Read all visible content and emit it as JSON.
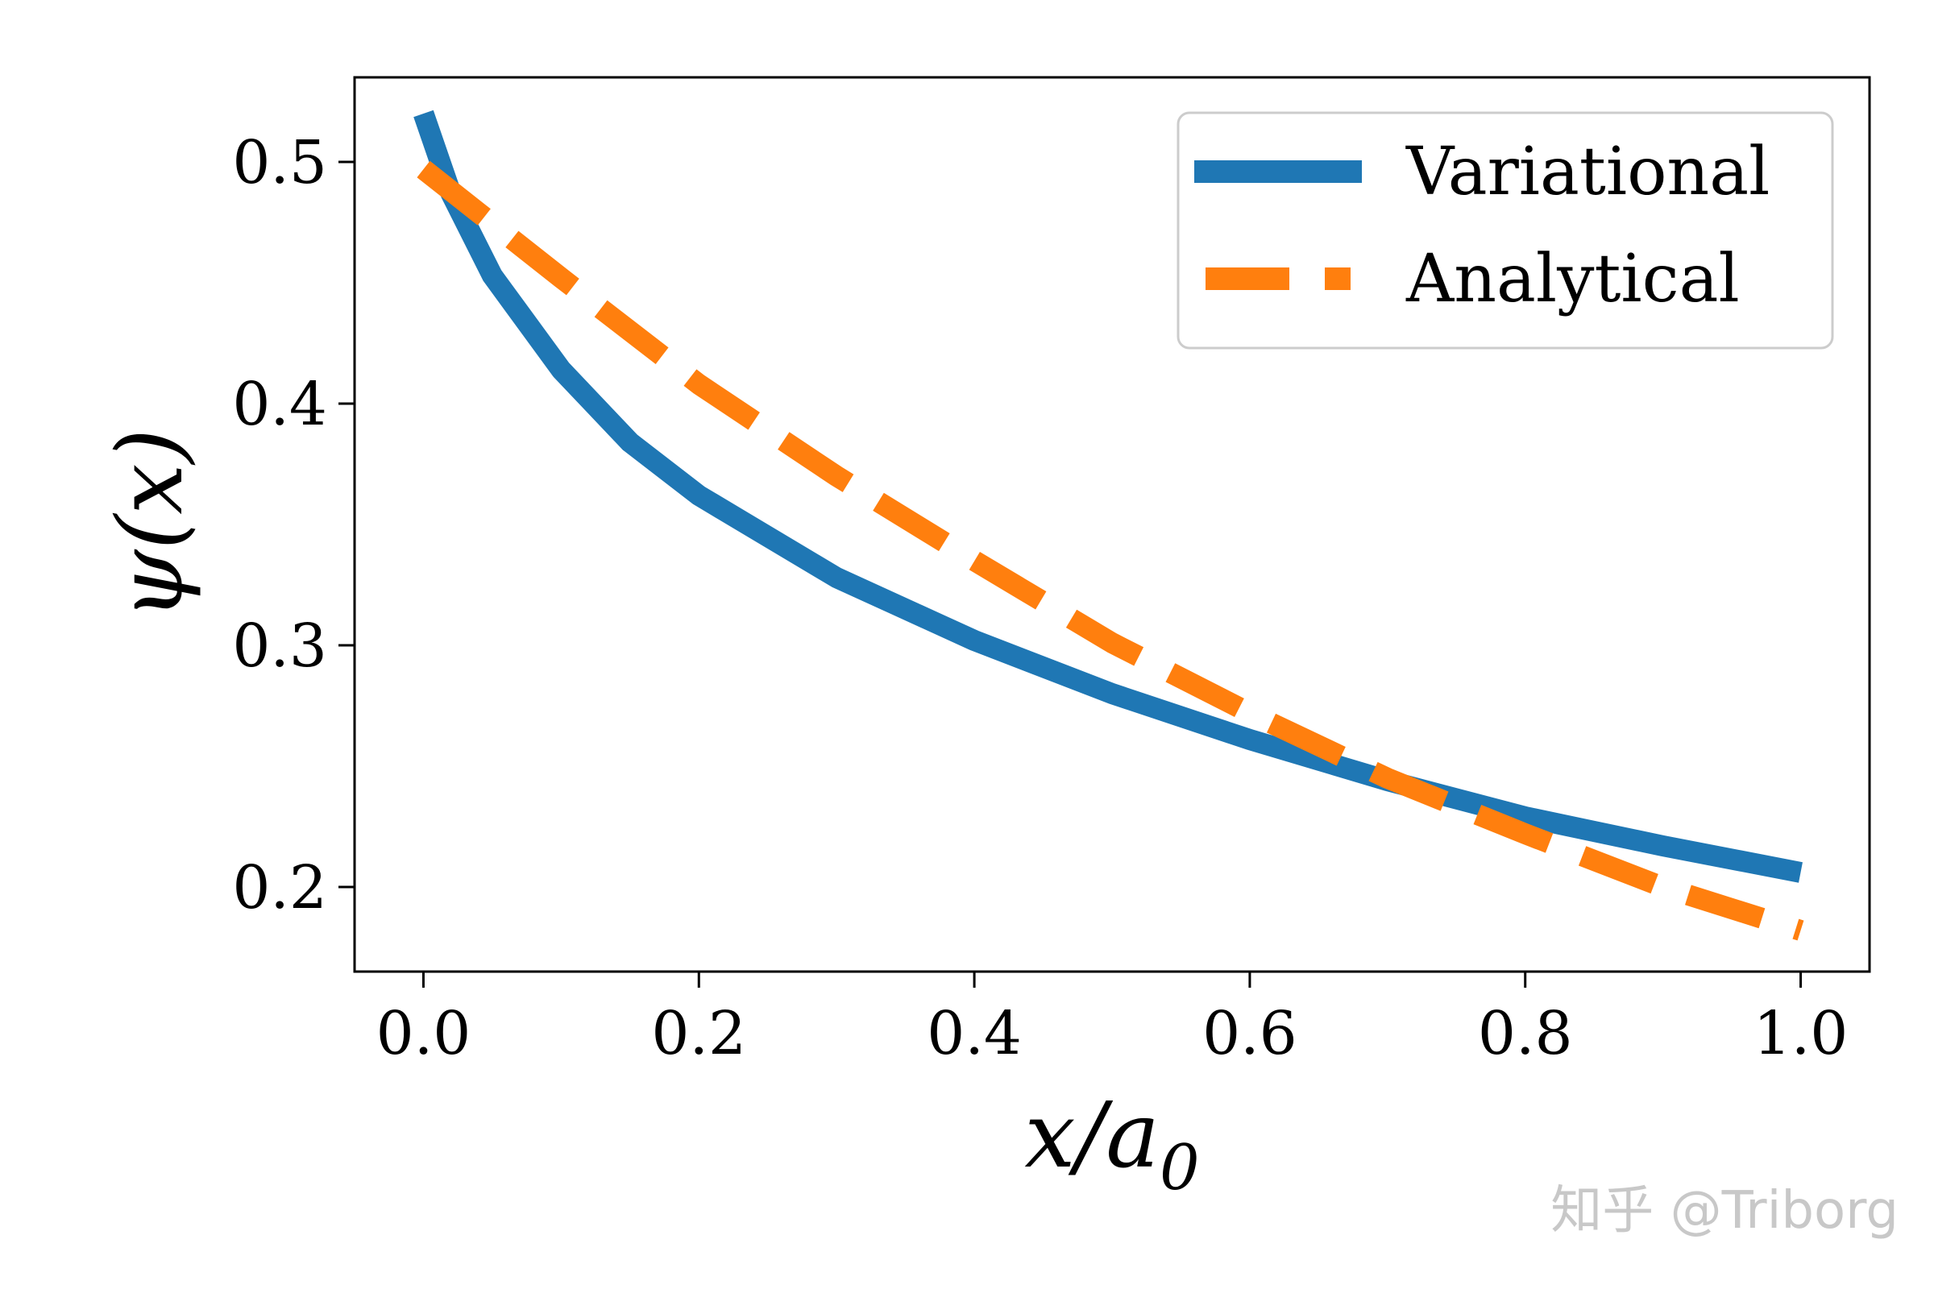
{
  "chart_data": {
    "type": "line",
    "title": "",
    "xlabel": "x/a",
    "xlabel_sub": "0",
    "ylabel": "ψ(x)",
    "xlim": [
      -0.05,
      1.05
    ],
    "ylim": [
      0.165,
      0.535
    ],
    "xticks": [
      0.0,
      0.2,
      0.4,
      0.6,
      0.8,
      1.0
    ],
    "xtick_labels": [
      "0.0",
      "0.2",
      "0.4",
      "0.6",
      "0.8",
      "1.0"
    ],
    "yticks": [
      0.2,
      0.3,
      0.4,
      0.5
    ],
    "ytick_labels": [
      "0.2",
      "0.3",
      "0.4",
      "0.5"
    ],
    "grid": false,
    "legend_position": "top-right",
    "series": [
      {
        "name": "Variational",
        "style": "solid",
        "color": "#1f77b4",
        "x": [
          0.0,
          0.02,
          0.05,
          0.1,
          0.15,
          0.2,
          0.3,
          0.4,
          0.5,
          0.6,
          0.7,
          0.8,
          0.9,
          1.0
        ],
        "y": [
          0.52,
          0.487,
          0.453,
          0.414,
          0.384,
          0.362,
          0.328,
          0.302,
          0.28,
          0.261,
          0.244,
          0.229,
          0.217,
          0.206
        ]
      },
      {
        "name": "Analytical",
        "style": "dashed",
        "color": "#ff7f0e",
        "x": [
          0.0,
          0.1,
          0.2,
          0.3,
          0.4,
          0.5,
          0.6,
          0.7,
          0.8,
          0.9,
          1.0
        ],
        "y": [
          0.497,
          0.452,
          0.408,
          0.37,
          0.335,
          0.301,
          0.272,
          0.245,
          0.222,
          0.2,
          0.182
        ]
      }
    ]
  },
  "watermark": {
    "text": "知乎 @Triborg"
  }
}
